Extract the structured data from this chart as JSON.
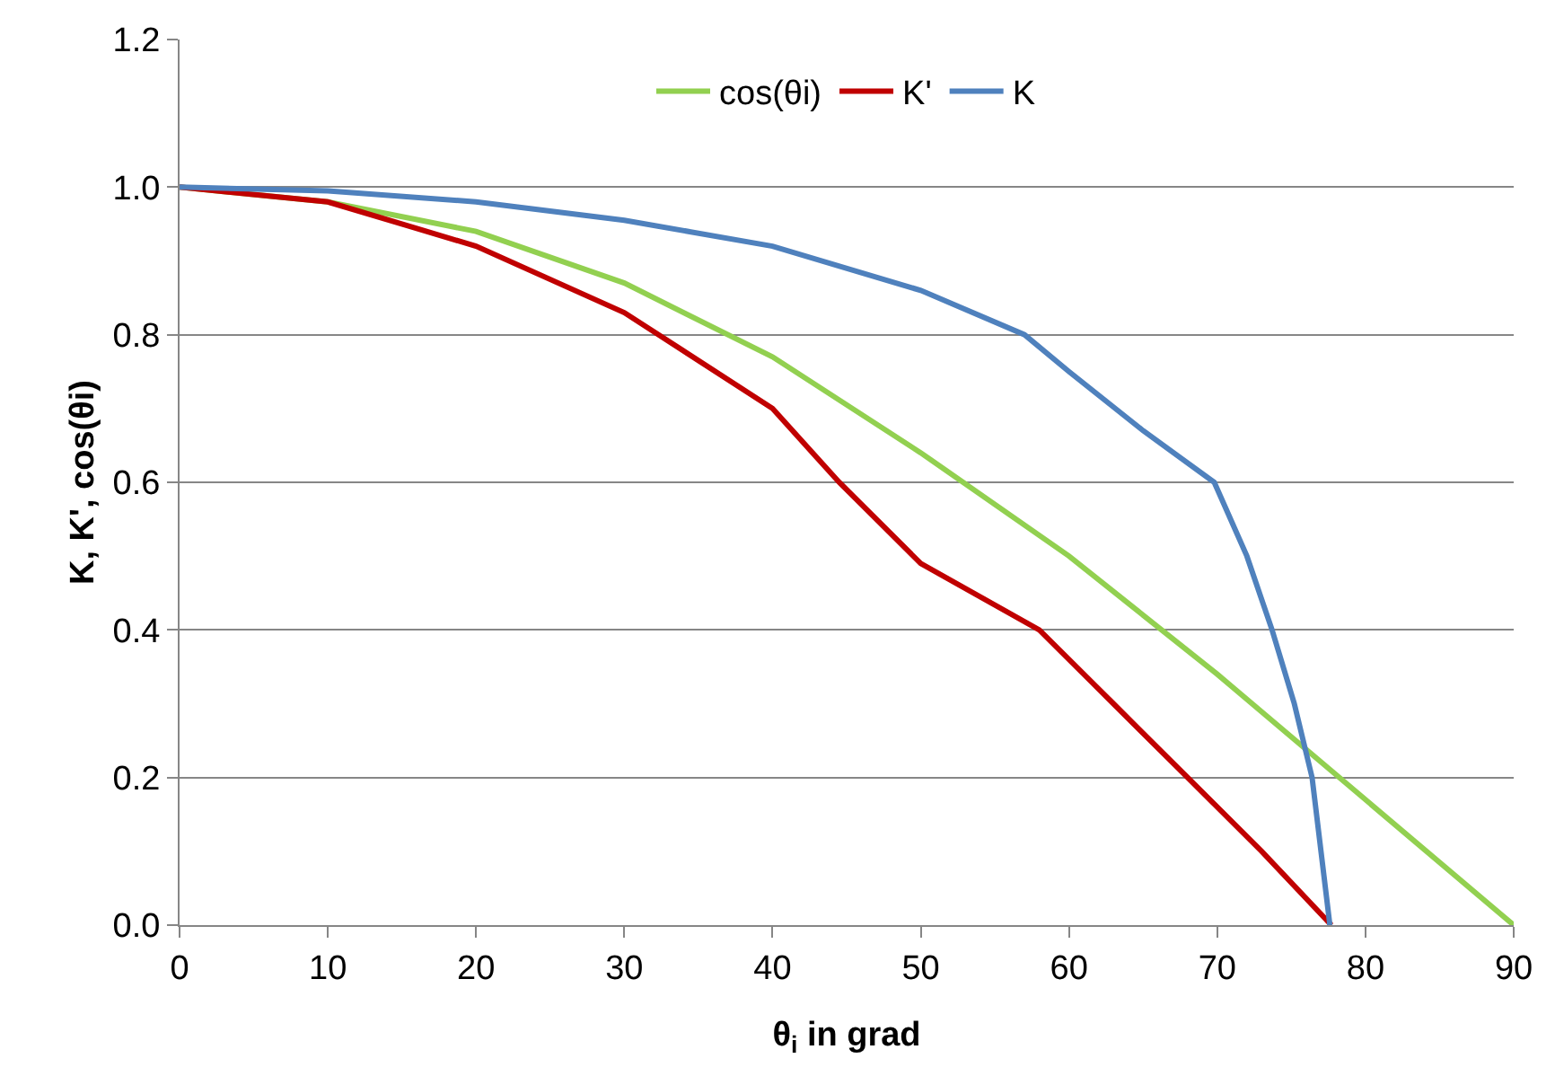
{
  "chart_data": {
    "type": "line",
    "xlabel": "θ$_{i}$ in grad",
    "ylabel": "K, K', cos(θi)",
    "xlim": [
      0,
      90
    ],
    "xticks": [
      0,
      10,
      20,
      30,
      40,
      50,
      60,
      70,
      80,
      90
    ],
    "ylim": [
      0,
      1.2
    ],
    "yticks": [
      {
        "value": 0,
        "label": "0.0"
      },
      {
        "value": 0.2,
        "label": "0.2"
      },
      {
        "value": 0.4,
        "label": "0.4"
      },
      {
        "value": 0.6,
        "label": "0.6"
      },
      {
        "value": 0.8,
        "label": "0.8"
      },
      {
        "value": 1,
        "label": "1.0"
      },
      {
        "value": 1.2,
        "label": "1.2"
      }
    ],
    "grid": "y",
    "legend": "top",
    "marker": "none",
    "line_style": "solid",
    "series": [
      {
        "name": "cos(θi)",
        "color": "#92d050",
        "x": [
          0,
          10,
          20,
          30,
          40,
          50,
          60,
          70,
          80,
          90
        ],
        "values": [
          1,
          0.98,
          0.94,
          0.87,
          0.77,
          0.64,
          0.5,
          0.34,
          0.17,
          0
        ]
      },
      {
        "name": "K'",
        "color": "#c00000",
        "x": [
          0,
          10,
          20,
          30,
          40,
          44.5,
          50,
          58,
          63,
          68,
          73,
          77.7
        ],
        "values": [
          1,
          0.98,
          0.92,
          0.83,
          0.7,
          0.6,
          0.49,
          0.4,
          0.3,
          0.2,
          0.1,
          0
        ]
      },
      {
        "name": "K",
        "color": "#4f81bd",
        "x": [
          0,
          10,
          20,
          30,
          40,
          50,
          57,
          60,
          65,
          69.8,
          72,
          73.7,
          75.2,
          76.4,
          77.6
        ],
        "values": [
          1,
          0.995,
          0.98,
          0.955,
          0.92,
          0.86,
          0.8,
          0.75,
          0.67,
          0.6,
          0.5,
          0.4,
          0.3,
          0.2,
          0
        ]
      }
    ]
  }
}
